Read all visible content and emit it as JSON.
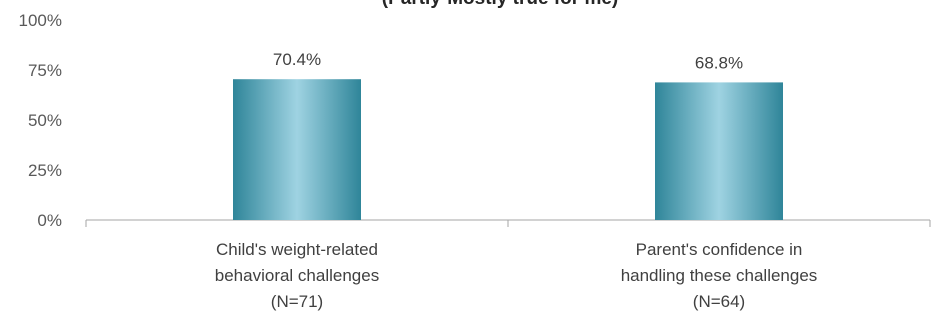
{
  "chart_data": {
    "type": "bar",
    "title": "(Partly-Mostly true for me)",
    "categories": [
      [
        "Child's weight-related",
        "behavioral challenges",
        "(N=71)"
      ],
      [
        "Parent's confidence in",
        "handling these challenges",
        "(N=64)"
      ]
    ],
    "values": [
      70.4,
      68.8
    ],
    "data_labels": [
      "70.4%",
      "68.8%"
    ],
    "ylim": [
      0,
      100
    ],
    "yticks": [
      0,
      25,
      50,
      75,
      100
    ],
    "ytick_labels": [
      "0%",
      "25%",
      "50%",
      "75%",
      "100%"
    ],
    "xlabel": "",
    "ylabel": "",
    "grid": false,
    "legend": "none",
    "colors": {
      "bar_edge": "#2f8599",
      "bar_center": "#9fd3e2",
      "axis": "#a6a6a6"
    }
  }
}
